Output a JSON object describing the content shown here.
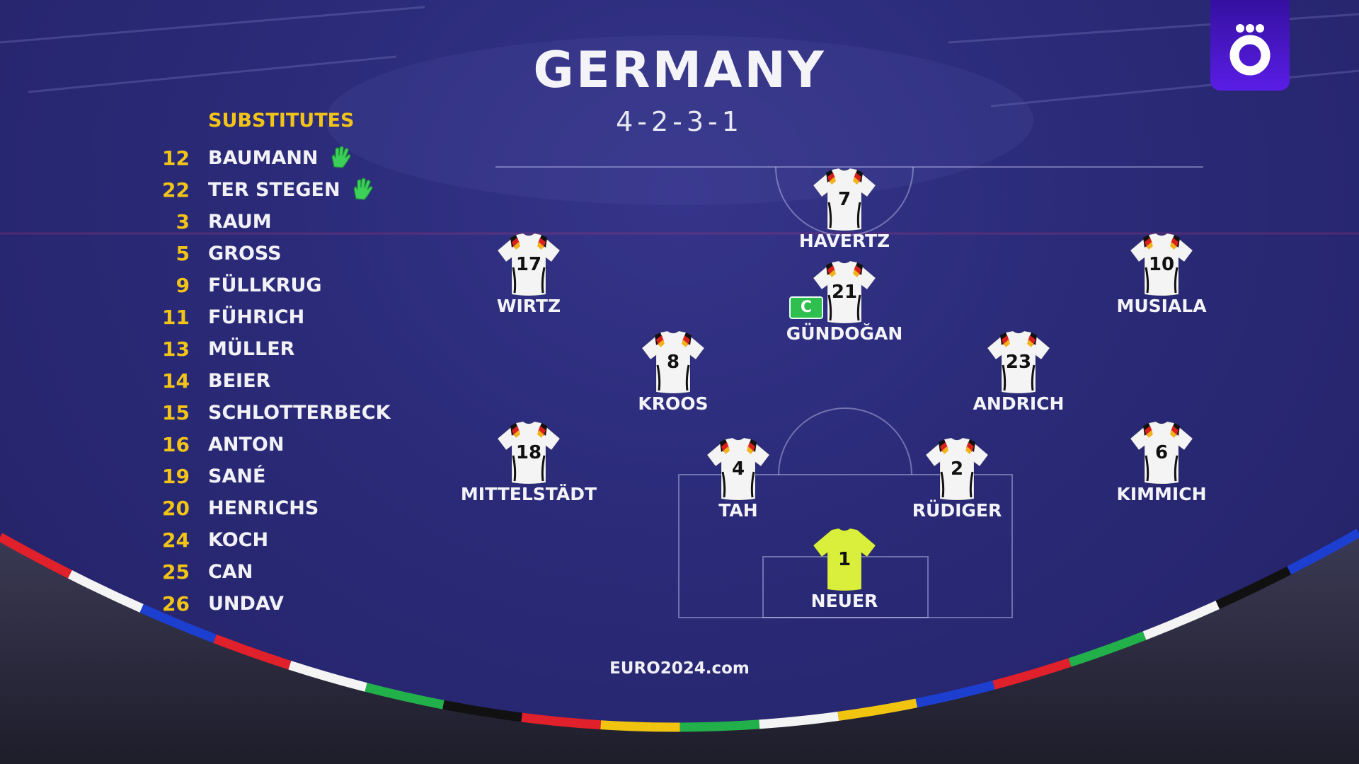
{
  "title": "GERMANY",
  "formation": "4-2-3-1",
  "substitutes": {
    "header": "SUBSTITUTES",
    "items": [
      {
        "number": "12",
        "name": "BAUMANN",
        "goalkeeper": true
      },
      {
        "number": "22",
        "name": "TER STEGEN",
        "goalkeeper": true
      },
      {
        "number": "3",
        "name": "RAUM",
        "goalkeeper": false
      },
      {
        "number": "5",
        "name": "GROSS",
        "goalkeeper": false
      },
      {
        "number": "9",
        "name": "FÜLLKRUG",
        "goalkeeper": false
      },
      {
        "number": "11",
        "name": "FÜHRICH",
        "goalkeeper": false
      },
      {
        "number": "13",
        "name": "MÜLLER",
        "goalkeeper": false
      },
      {
        "number": "14",
        "name": "BEIER",
        "goalkeeper": false
      },
      {
        "number": "15",
        "name": "SCHLOTTERBECK",
        "goalkeeper": false
      },
      {
        "number": "16",
        "name": "ANTON",
        "goalkeeper": false
      },
      {
        "number": "19",
        "name": "SANÉ",
        "goalkeeper": false
      },
      {
        "number": "20",
        "name": "HENRICHS",
        "goalkeeper": false
      },
      {
        "number": "24",
        "name": "KOCH",
        "goalkeeper": false
      },
      {
        "number": "25",
        "name": "CAN",
        "goalkeeper": false
      },
      {
        "number": "26",
        "name": "UNDAV",
        "goalkeeper": false
      }
    ]
  },
  "lineup": [
    {
      "number": "7",
      "name": "HAVERTZ",
      "role": "striker",
      "kit": "outfield",
      "captain": false
    },
    {
      "number": "17",
      "name": "WIRTZ",
      "role": "left-attacking-mid",
      "kit": "outfield",
      "captain": false
    },
    {
      "number": "21",
      "name": "GÜNDOĞAN",
      "role": "attacking-mid",
      "kit": "outfield",
      "captain": true
    },
    {
      "number": "10",
      "name": "MUSIALA",
      "role": "right-attacking-mid",
      "kit": "outfield",
      "captain": false
    },
    {
      "number": "8",
      "name": "KROOS",
      "role": "left-defensive-mid",
      "kit": "outfield",
      "captain": false
    },
    {
      "number": "23",
      "name": "ANDRICH",
      "role": "right-defensive-mid",
      "kit": "outfield",
      "captain": false
    },
    {
      "number": "18",
      "name": "MITTELSTÄDT",
      "role": "left-back",
      "kit": "outfield",
      "captain": false
    },
    {
      "number": "4",
      "name": "TAH",
      "role": "left-centre-back",
      "kit": "outfield",
      "captain": false
    },
    {
      "number": "2",
      "name": "RÜDIGER",
      "role": "right-centre-back",
      "kit": "outfield",
      "captain": false
    },
    {
      "number": "6",
      "name": "KIMMICH",
      "role": "right-back",
      "kit": "outfield",
      "captain": false
    },
    {
      "number": "1",
      "name": "NEUER",
      "role": "goalkeeper",
      "kit": "goalkeeper",
      "captain": false
    }
  ],
  "captain_label": "C",
  "footer": "EURO2024.com",
  "logo": {
    "glyph": "ö",
    "icon": "broadcaster-logo"
  },
  "colors": {
    "accent": "#f2c417",
    "background": "#2a2a78",
    "captain_badge": "#2fbf4f",
    "glove": "#3ccf5a",
    "outfield_kit": "#f4f4f4",
    "goalkeeper_kit": "#d9ef3c",
    "logo": "#4a16cc"
  }
}
